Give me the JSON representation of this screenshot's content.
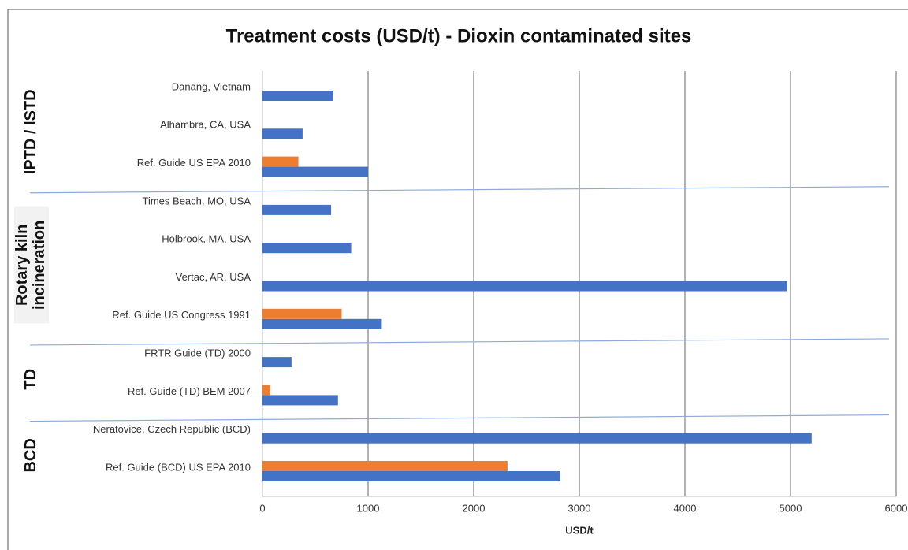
{
  "chart_data": {
    "type": "bar",
    "orientation": "horizontal",
    "title": "Treatment costs (USD/t) - Dioxin contaminated sites",
    "x_label": "USD/t",
    "groups": [
      {
        "label": [
          "IPTD / ISTD"
        ],
        "categories": [
          "Danang, Vietnam",
          "Alhambra, CA, USA",
          "Ref. Guide US EPA 2010"
        ]
      },
      {
        "label": [
          "Rotary kiln",
          "incineration"
        ],
        "categories": [
          "Times Beach, MO, USA",
          "Holbrook, MA, USA",
          "Vertac, AR, USA",
          "Ref. Guide US Congress 1991"
        ]
      },
      {
        "label": [
          "TD"
        ],
        "categories": [
          "FRTR Guide (TD) 2000",
          "Ref. Guide (TD) BEM 2007"
        ]
      },
      {
        "label": [
          "BCD"
        ],
        "categories": [
          "Neratovice, Czech Republic (BCD)",
          "Ref. Guide (BCD) US EPA 2010"
        ]
      }
    ],
    "series": [
      {
        "color": "#4472c4",
        "values": [
          670,
          380,
          1000,
          650,
          840,
          4970,
          1130,
          275,
          715,
          5200,
          2820
        ]
      },
      {
        "color": "#ed7d31",
        "values": [
          null,
          null,
          340,
          null,
          null,
          null,
          750,
          null,
          75,
          null,
          2320
        ]
      }
    ],
    "xlim": [
      0,
      6000
    ],
    "xticks": [
      0,
      1000,
      2000,
      3000,
      4000,
      5000,
      6000
    ],
    "grid": true
  }
}
